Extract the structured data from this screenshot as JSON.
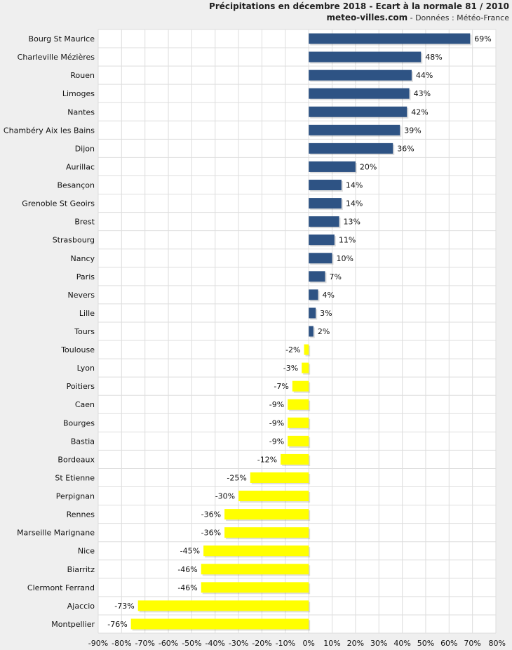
{
  "chart_data": {
    "type": "bar",
    "orientation": "horizontal",
    "title": "Précipitations en décembre 2018 - Ecart à la normale 81 / 2010",
    "subtitle_site": "meteo-villes.com",
    "subtitle_source": " - Données : Météo-France",
    "categories": [
      "Bourg St Maurice",
      "Charleville Mézières",
      "Rouen",
      "Limoges",
      "Nantes",
      "Chambéry Aix les Bains",
      "Dijon",
      "Aurillac",
      "Besançon",
      "Grenoble St Geoirs",
      "Brest",
      "Strasbourg",
      "Nancy",
      "Paris",
      "Nevers",
      "Lille",
      "Tours",
      "Toulouse",
      "Lyon",
      "Poitiers",
      "Caen",
      "Bourges",
      "Bastia",
      "Bordeaux",
      "St Etienne",
      "Perpignan",
      "Rennes",
      "Marseille Marignane",
      "Nice",
      "Biarritz",
      "Clermont Ferrand",
      "Ajaccio",
      "Montpellier"
    ],
    "values": [
      69,
      48,
      44,
      43,
      42,
      39,
      36,
      20,
      14,
      14,
      13,
      11,
      10,
      7,
      4,
      3,
      2,
      -2,
      -3,
      -7,
      -9,
      -9,
      -9,
      -12,
      -25,
      -30,
      -36,
      -36,
      -45,
      -46,
      -46,
      -73,
      -76
    ],
    "data_labels": [
      "69%",
      "48%",
      "44%",
      "43%",
      "42%",
      "39%",
      "36%",
      "20%",
      "14%",
      "14%",
      "13%",
      "11%",
      "10%",
      "7%",
      "4%",
      "3%",
      "2%",
      "-2%",
      "-3%",
      "-7%",
      "-9%",
      "-9%",
      "-9%",
      "-12%",
      "-25%",
      "-30%",
      "-36%",
      "-36%",
      "-45%",
      "-46%",
      "-46%",
      "-73%",
      "-76%"
    ],
    "xlim": [
      -90,
      80
    ],
    "x_ticks": [
      -90,
      -80,
      -70,
      -60,
      -50,
      -40,
      -30,
      -20,
      -10,
      0,
      10,
      20,
      30,
      40,
      50,
      60,
      70,
      80
    ],
    "x_tick_labels": [
      "-90%",
      "-80%",
      "-70%",
      "-60%",
      "-50%",
      "-40%",
      "-30%",
      "-20%",
      "-10%",
      "0%",
      "10%",
      "20%",
      "30%",
      "40%",
      "50%",
      "60%",
      "70%",
      "80%"
    ],
    "grid": true,
    "colors": {
      "positive": "#2e5384",
      "negative": "#ffff00",
      "grid": "#dedede",
      "plot_bg": "#ffffff",
      "page_bg": "#efefef"
    }
  }
}
